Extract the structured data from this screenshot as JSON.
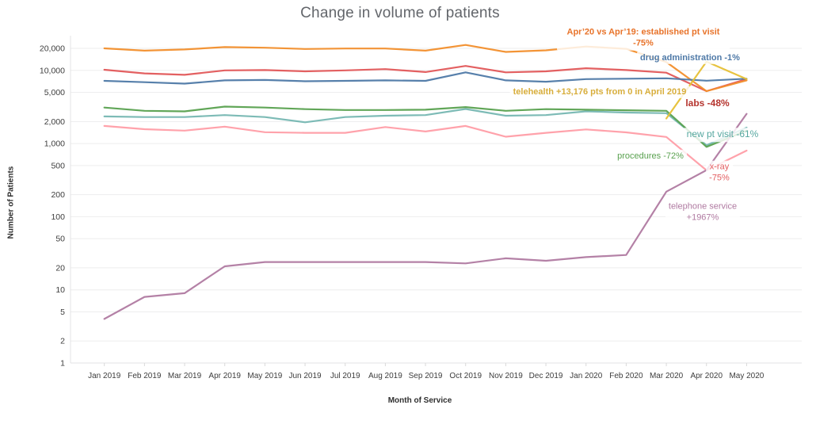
{
  "chart_data": {
    "type": "line",
    "title": "Change in volume of patients",
    "xlabel": "Month of Service",
    "ylabel": "Number of Patients",
    "y_scale": "log",
    "ylim": [
      1,
      30000
    ],
    "grid": "horizontal",
    "legend_position": "none (direct line annotations)",
    "categories": [
      "Jan 2019",
      "Feb 2019",
      "Mar 2019",
      "Apr 2019",
      "May 2019",
      "Jun 2019",
      "Jul 2019",
      "Aug 2019",
      "Sep 2019",
      "Oct 2019",
      "Nov 2019",
      "Dec 2019",
      "Jan 2020",
      "Feb 2020",
      "Mar 2020",
      "Apr 2020",
      "May 2020"
    ],
    "y_ticks": [
      {
        "v": 20000,
        "label": "20,000"
      },
      {
        "v": 10000,
        "label": "10,000"
      },
      {
        "v": 5000,
        "label": "5,000"
      },
      {
        "v": 2000,
        "label": "2,000"
      },
      {
        "v": 1000,
        "label": "1,000"
      },
      {
        "v": 500,
        "label": "500"
      },
      {
        "v": 200,
        "label": "200"
      },
      {
        "v": 100,
        "label": "100"
      },
      {
        "v": 50,
        "label": "50"
      },
      {
        "v": 20,
        "label": "20"
      },
      {
        "v": 10,
        "label": "10"
      },
      {
        "v": 5,
        "label": "5"
      },
      {
        "v": 2,
        "label": "2"
      },
      {
        "v": 1,
        "label": "1"
      }
    ],
    "series": [
      {
        "id": "x-ray",
        "name": "x-ray",
        "color": "#ff9da7",
        "values": [
          1740,
          1570,
          1500,
          1700,
          1430,
          1400,
          1400,
          1680,
          1460,
          1740,
          1240,
          1400,
          1560,
          1420,
          1230,
          430,
          800
        ]
      },
      {
        "id": "new-pt-visit",
        "name": "new pt visit",
        "color": "#76b7b2",
        "values": [
          2350,
          2300,
          2300,
          2450,
          2300,
          1950,
          2300,
          2400,
          2450,
          2970,
          2400,
          2450,
          2750,
          2650,
          2600,
          950,
          1650
        ]
      },
      {
        "id": "procedures",
        "name": "procedures",
        "color": "#59a14f",
        "values": [
          3100,
          2800,
          2750,
          3200,
          3100,
          2950,
          2870,
          2870,
          2900,
          3150,
          2800,
          2950,
          2900,
          2850,
          2800,
          900,
          1500
        ]
      },
      {
        "id": "labs",
        "name": "labs",
        "color": "#e15759",
        "values": [
          10200,
          9100,
          8700,
          10000,
          10100,
          9700,
          10000,
          10400,
          9500,
          11500,
          9400,
          9700,
          10700,
          10100,
          9300,
          5200,
          7600
        ]
      },
      {
        "id": "established-pt-visit",
        "name": "established pt visit",
        "color": "#f28e2b",
        "values": [
          20000,
          18600,
          19300,
          20800,
          20400,
          19600,
          19900,
          19900,
          18600,
          22300,
          17900,
          18800,
          21200,
          19700,
          13000,
          5200,
          7300
        ]
      },
      {
        "id": "drug-administration",
        "name": "drug administration",
        "color": "#4e79a7",
        "values": [
          7200,
          6900,
          6600,
          7300,
          7400,
          7100,
          7200,
          7300,
          7200,
          9400,
          7300,
          7000,
          7600,
          7700,
          7800,
          7230,
          7700
        ]
      },
      {
        "id": "telephone-service",
        "name": "telephone service",
        "color": "#b07aa1",
        "values": [
          4,
          8,
          9,
          21,
          24,
          24,
          24,
          24,
          24,
          23,
          27,
          25,
          28,
          30,
          220,
          434,
          2550
        ]
      },
      {
        "id": "telehealth",
        "name": "telehealth",
        "color": "#e6c035",
        "values": [
          null,
          null,
          null,
          null,
          null,
          null,
          null,
          null,
          null,
          null,
          null,
          null,
          null,
          null,
          2200,
          13176,
          7600
        ]
      }
    ],
    "annotations": [
      {
        "id": "established-pt-visit",
        "text": "Apr’20 vs Apr’19: established pt visit -75%",
        "color": "#e8732a",
        "x": 812,
        "y": 48,
        "weight": 700,
        "size": 11
      },
      {
        "id": "drug-administration",
        "text": "drug administration -1%",
        "color": "#4e79a7",
        "x": 871,
        "y": 73,
        "weight": 600,
        "size": 11
      },
      {
        "id": "telehealth",
        "text": "telehealth +13,176 pts from 0 in April 2019",
        "color": "#d8ae3c",
        "x": 757,
        "y": 116,
        "weight": 600,
        "size": 11
      },
      {
        "id": "labs",
        "text": "labs -48%",
        "color": "#b5342e",
        "x": 893,
        "y": 131,
        "weight": 700,
        "size": 12
      },
      {
        "id": "new-pt-visit",
        "text": "new pt visit -61%",
        "color": "#56a7a0",
        "x": 912,
        "y": 170,
        "weight": 400,
        "size": 12
      },
      {
        "id": "procedures",
        "text": "procedures -72%",
        "color": "#59a14f",
        "x": 821,
        "y": 197,
        "weight": 400,
        "size": 11
      },
      {
        "id": "x-ray",
        "text": "x-ray\n-75%",
        "color": "#e35d60",
        "x": 908,
        "y": 218,
        "weight": 400,
        "size": 11
      },
      {
        "id": "telephone-service",
        "text": "telephone service\n+1967%",
        "color": "#b07aa1",
        "x": 887,
        "y": 268,
        "weight": 400,
        "size": 11
      }
    ]
  }
}
